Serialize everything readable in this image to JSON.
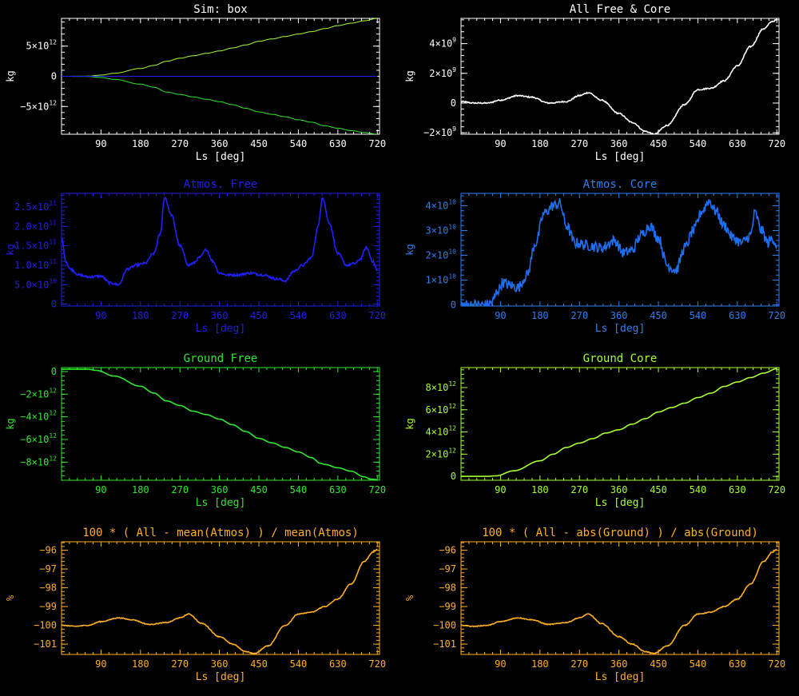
{
  "chart_data": [
    {
      "type": "line",
      "title": "Sim: box",
      "xlabel": "Ls [deg]",
      "ylabel": "kg",
      "color": "#ffffff",
      "xlim": [
        0,
        725
      ],
      "ylim": [
        -9600000000000.0,
        9600000000000.0
      ],
      "xticks": [
        90,
        180,
        270,
        360,
        450,
        540,
        630,
        720
      ],
      "yticks": [
        {
          "v": 5000000000000.0,
          "m": "5×10",
          "e": "12"
        },
        {
          "v": 0,
          "m": "0",
          "e": ""
        },
        {
          "v": -5000000000000.0,
          "m": "−5×10",
          "e": "12"
        }
      ],
      "series": [
        {
          "color": "#a6ff2e",
          "noise": 0,
          "x": [
            0,
            60,
            90,
            120,
            180,
            210,
            240,
            270,
            300,
            330,
            360,
            390,
            420,
            450,
            480,
            510,
            540,
            570,
            600,
            630,
            660,
            690,
            720
          ],
          "y": [
            0,
            20000000000.0,
            200000000000.0,
            500000000000.0,
            1300000000000.0,
            1800000000000.0,
            2500000000000.0,
            3000000000000.0,
            3400000000000.0,
            3800000000000.0,
            4200000000000.0,
            4700000000000.0,
            5200000000000.0,
            5800000000000.0,
            6200000000000.0,
            6600000000000.0,
            7000000000000.0,
            7400000000000.0,
            7900000000000.0,
            8400000000000.0,
            8800000000000.0,
            9200000000000.0,
            9600000000000.0
          ]
        },
        {
          "color": "#2ee82e",
          "noise": 0,
          "x": [
            0,
            60,
            90,
            120,
            180,
            210,
            240,
            270,
            300,
            330,
            360,
            390,
            420,
            450,
            480,
            510,
            540,
            570,
            600,
            630,
            660,
            690,
            720
          ],
          "y": [
            0,
            -20000000000.0,
            -200000000000.0,
            -500000000000.0,
            -1300000000000.0,
            -1800000000000.0,
            -2600000000000.0,
            -3000000000000.0,
            -3400000000000.0,
            -3800000000000.0,
            -4200000000000.0,
            -4700000000000.0,
            -5300000000000.0,
            -5900000000000.0,
            -6300000000000.0,
            -6700000000000.0,
            -7200000000000.0,
            -7600000000000.0,
            -8200000000000.0,
            -8600000000000.0,
            -9000000000000.0,
            -9300000000000.0,
            -9600000000000.0
          ]
        },
        {
          "color": "#2020ff",
          "noise": 0,
          "x": [
            0,
            720
          ],
          "y": [
            0,
            0
          ]
        }
      ]
    },
    {
      "type": "line",
      "title": "All Free & Core",
      "xlabel": "Ls [deg]",
      "ylabel": "kg",
      "color": "#ffffff",
      "xlim": [
        0,
        725
      ],
      "ylim": [
        -2100000000.0,
        5700000000.0
      ],
      "xticks": [
        90,
        180,
        270,
        360,
        450,
        540,
        630,
        720
      ],
      "yticks": [
        {
          "v": 4000000000.0,
          "m": "4×10",
          "e": "9"
        },
        {
          "v": 2000000000.0,
          "m": "2×10",
          "e": "9"
        },
        {
          "v": 0,
          "m": "0",
          "e": ""
        },
        {
          "v": -2000000000.0,
          "m": "−2×10",
          "e": "9"
        }
      ],
      "series": [
        {
          "color": "#ffffff",
          "noise": 40000000.0,
          "x": [
            0,
            30,
            60,
            90,
            130,
            160,
            200,
            240,
            270,
            290,
            320,
            360,
            390,
            420,
            440,
            470,
            510,
            540,
            570,
            600,
            630,
            660,
            690,
            710,
            720
          ],
          "y": [
            100000000.0,
            0.0,
            0.0,
            200000000.0,
            500000000.0,
            400000000.0,
            0.0,
            100000000.0,
            500000000.0,
            700000000.0,
            200000000.0,
            -700000000.0,
            -1300000000.0,
            -1900000000.0,
            -2100000000.0,
            -1500000000.0,
            -100000000.0,
            900000000.0,
            1000000000.0,
            1500000000.0,
            2500000000.0,
            3800000000.0,
            5000000000.0,
            5500000000.0,
            5600000000.0
          ]
        }
      ]
    },
    {
      "type": "line",
      "title": "Atmos. Free",
      "xlabel": "Ls [deg]",
      "ylabel": "kg",
      "color": "#2020e6",
      "xlim": [
        0,
        725
      ],
      "ylim": [
        -5000000000.0,
        285000000000.0
      ],
      "xticks": [
        90,
        180,
        270,
        360,
        450,
        540,
        630,
        720
      ],
      "yticks": [
        {
          "v": 250000000000.0,
          "m": "2.5×10",
          "e": "11"
        },
        {
          "v": 200000000000.0,
          "m": "2.0×10",
          "e": "11"
        },
        {
          "v": 150000000000.0,
          "m": "1.5×10",
          "e": "11"
        },
        {
          "v": 100000000000.0,
          "m": "1.0×10",
          "e": "11"
        },
        {
          "v": 50000000000.0,
          "m": "5.0×10",
          "e": "10"
        },
        {
          "v": 0,
          "m": "0",
          "e": ""
        }
      ],
      "series": [
        {
          "color": "#2020ff",
          "noise": 3000000000.0,
          "x": [
            0,
            10,
            20,
            40,
            60,
            90,
            110,
            130,
            150,
            170,
            190,
            210,
            225,
            235,
            250,
            270,
            290,
            300,
            315,
            330,
            345,
            360,
            380,
            400,
            430,
            460,
            490,
            510,
            530,
            550,
            570,
            585,
            595,
            610,
            630,
            650,
            670,
            680,
            695,
            710,
            720
          ],
          "y": [
            170000000000.0,
            110000000000.0,
            90000000000.0,
            75000000000.0,
            70000000000.0,
            72000000000.0,
            55000000000.0,
            50000000000.0,
            90000000000.0,
            100000000000.0,
            105000000000.0,
            130000000000.0,
            180000000000.0,
            275000000000.0,
            230000000000.0,
            150000000000.0,
            100000000000.0,
            105000000000.0,
            120000000000.0,
            140000000000.0,
            110000000000.0,
            80000000000.0,
            75000000000.0,
            75000000000.0,
            80000000000.0,
            75000000000.0,
            65000000000.0,
            60000000000.0,
            85000000000.0,
            100000000000.0,
            120000000000.0,
            200000000000.0,
            275000000000.0,
            210000000000.0,
            130000000000.0,
            100000000000.0,
            105000000000.0,
            115000000000.0,
            145000000000.0,
            110000000000.0,
            85000000000.0
          ]
        }
      ]
    },
    {
      "type": "line",
      "title": "Atmos. Core",
      "xlabel": "Ls [deg]",
      "ylabel": "kg",
      "color": "#2e7ff0",
      "xlim": [
        0,
        725
      ],
      "ylim": [
        -500000000.0,
        45000000000.0
      ],
      "xticks": [
        90,
        180,
        270,
        360,
        450,
        540,
        630,
        720
      ],
      "yticks": [
        {
          "v": 40000000000.0,
          "m": "4×10",
          "e": "10"
        },
        {
          "v": 30000000000.0,
          "m": "3×10",
          "e": "10"
        },
        {
          "v": 20000000000.0,
          "m": "2×10",
          "e": "10"
        },
        {
          "v": 10000000000.0,
          "m": "1×10",
          "e": "10"
        },
        {
          "v": 0,
          "m": "0",
          "e": ""
        }
      ],
      "series": [
        {
          "color": "#1e6ef0",
          "noise": 2200000000.0,
          "x": [
            0,
            60,
            70,
            85,
            95,
            110,
            130,
            150,
            170,
            190,
            210,
            225,
            240,
            260,
            290,
            320,
            350,
            370,
            390,
            410,
            430,
            450,
            470,
            490,
            510,
            530,
            550,
            565,
            580,
            600,
            620,
            640,
            660,
            670,
            685,
            700,
            710,
            720
          ],
          "y": [
            0,
            0,
            1000000000.0,
            6000000000.0,
            9000000000.0,
            8000000000.0,
            7000000000.0,
            12000000000.0,
            25000000000.0,
            37000000000.0,
            40000000000.0,
            41000000000.0,
            32000000000.0,
            25000000000.0,
            24000000000.0,
            23000000000.0,
            26000000000.0,
            21000000000.0,
            22000000000.0,
            28000000000.0,
            32000000000.0,
            27000000000.0,
            16000000000.0,
            14000000000.0,
            23000000000.0,
            30000000000.0,
            38000000000.0,
            42000000000.0,
            38000000000.0,
            32000000000.0,
            27000000000.0,
            25000000000.0,
            28000000000.0,
            37000000000.0,
            30000000000.0,
            25000000000.0,
            27000000000.0,
            24000000000.0
          ]
        }
      ]
    },
    {
      "type": "line",
      "title": "Ground Free",
      "xlabel": "Ls [deg]",
      "ylabel": "kg",
      "color": "#2ee82e",
      "xlim": [
        0,
        725
      ],
      "ylim": [
        -9600000000000.0,
        350000000000.0
      ],
      "xticks": [
        90,
        180,
        270,
        360,
        450,
        540,
        630,
        720
      ],
      "yticks": [
        {
          "v": 0,
          "m": "0",
          "e": ""
        },
        {
          "v": -2000000000000.0,
          "m": "−2×10",
          "e": "12"
        },
        {
          "v": -4000000000000.0,
          "m": "−4×10",
          "e": "12"
        },
        {
          "v": -6000000000000.0,
          "m": "−6×10",
          "e": "12"
        },
        {
          "v": -8000000000000.0,
          "m": "−8×10",
          "e": "12"
        }
      ],
      "series": [
        {
          "color": "#2ee82e",
          "noise": 0,
          "x": [
            0,
            60,
            80,
            120,
            180,
            210,
            240,
            270,
            300,
            330,
            360,
            390,
            420,
            450,
            480,
            510,
            540,
            570,
            590,
            600,
            630,
            660,
            690,
            705,
            720
          ],
          "y": [
            200000000000.0,
            200000000000.0,
            100000000000.0,
            -400000000000.0,
            -1300000000000.0,
            -1900000000000.0,
            -2600000000000.0,
            -3000000000000.0,
            -3500000000000.0,
            -3800000000000.0,
            -4200000000000.0,
            -4700000000000.0,
            -5300000000000.0,
            -5900000000000.0,
            -6300000000000.0,
            -6700000000000.0,
            -7100000000000.0,
            -7600000000000.0,
            -8100000000000.0,
            -8200000000000.0,
            -8500000000000.0,
            -8800000000000.0,
            -9300000000000.0,
            -9500000000000.0,
            -9550000000000.0
          ]
        }
      ]
    },
    {
      "type": "line",
      "title": "Ground Core",
      "xlabel": "Ls [deg]",
      "ylabel": "kg",
      "color": "#a6ff2e",
      "xlim": [
        0,
        725
      ],
      "ylim": [
        -350000000000.0,
        9800000000000.0
      ],
      "xticks": [
        90,
        180,
        270,
        360,
        450,
        540,
        630,
        720
      ],
      "yticks": [
        {
          "v": 8000000000000.0,
          "m": "8×10",
          "e": "12"
        },
        {
          "v": 6000000000000.0,
          "m": "6×10",
          "e": "12"
        },
        {
          "v": 4000000000000.0,
          "m": "4×10",
          "e": "12"
        },
        {
          "v": 2000000000000.0,
          "m": "2×10",
          "e": "12"
        },
        {
          "v": 0,
          "m": "0",
          "e": ""
        }
      ],
      "series": [
        {
          "color": "#a6ff2e",
          "noise": 0,
          "x": [
            0,
            60,
            80,
            120,
            180,
            210,
            240,
            270,
            300,
            330,
            360,
            390,
            420,
            450,
            480,
            510,
            540,
            570,
            600,
            630,
            660,
            690,
            720
          ],
          "y": [
            0,
            0,
            50000000000.0,
            500000000000.0,
            1400000000000.0,
            2000000000000.0,
            2600000000000.0,
            3000000000000.0,
            3400000000000.0,
            3900000000000.0,
            4200000000000.0,
            4700000000000.0,
            5200000000000.0,
            5800000000000.0,
            6200000000000.0,
            6600000000000.0,
            7100000000000.0,
            7500000000000.0,
            8100000000000.0,
            8500000000000.0,
            8900000000000.0,
            9300000000000.0,
            9700000000000.0
          ]
        }
      ]
    },
    {
      "type": "line",
      "title": "100 * ( All - mean(Atmos) ) / mean(Atmos)",
      "xlabel": "Ls [deg]",
      "ylabel": "%",
      "color": "#ffb020",
      "xlim": [
        0,
        725
      ],
      "ylim": [
        -101.55,
        -95.55
      ],
      "xticks": [
        90,
        180,
        270,
        360,
        450,
        540,
        630,
        720
      ],
      "yticks": [
        {
          "v": -96,
          "m": "−96",
          "e": ""
        },
        {
          "v": -97,
          "m": "−97",
          "e": ""
        },
        {
          "v": -98,
          "m": "−98",
          "e": ""
        },
        {
          "v": -99,
          "m": "−99",
          "e": ""
        },
        {
          "v": -100,
          "m": "−100",
          "e": ""
        },
        {
          "v": -101,
          "m": "−101",
          "e": ""
        }
      ],
      "series": [
        {
          "color": "#ffb020",
          "noise": 0.02,
          "x": [
            0,
            30,
            60,
            90,
            130,
            160,
            200,
            240,
            270,
            290,
            320,
            360,
            390,
            420,
            440,
            470,
            510,
            540,
            570,
            600,
            630,
            660,
            690,
            710,
            720
          ],
          "y": [
            -100.0,
            -100.05,
            -100.0,
            -99.8,
            -99.6,
            -99.7,
            -99.95,
            -99.85,
            -99.6,
            -99.4,
            -99.9,
            -100.6,
            -101.0,
            -101.4,
            -101.5,
            -101.1,
            -100.0,
            -99.4,
            -99.3,
            -99.0,
            -98.6,
            -97.8,
            -96.6,
            -96.1,
            -95.95
          ]
        }
      ]
    },
    {
      "type": "line",
      "title": "100 * ( All - abs(Ground) ) / abs(Ground)",
      "xlabel": "Ls [deg]",
      "ylabel": "%",
      "color": "#ffb020",
      "xlim": [
        0,
        725
      ],
      "ylim": [
        -101.55,
        -95.55
      ],
      "xticks": [
        90,
        180,
        270,
        360,
        450,
        540,
        630,
        720
      ],
      "yticks": [
        {
          "v": -96,
          "m": "−96",
          "e": ""
        },
        {
          "v": -97,
          "m": "−97",
          "e": ""
        },
        {
          "v": -98,
          "m": "−98",
          "e": ""
        },
        {
          "v": -99,
          "m": "−99",
          "e": ""
        },
        {
          "v": -100,
          "m": "−100",
          "e": ""
        },
        {
          "v": -101,
          "m": "−101",
          "e": ""
        }
      ],
      "series": [
        {
          "color": "#ffb020",
          "noise": 0.02,
          "x": [
            0,
            30,
            60,
            90,
            130,
            160,
            200,
            240,
            270,
            290,
            320,
            360,
            390,
            420,
            440,
            470,
            510,
            540,
            570,
            600,
            630,
            660,
            690,
            710,
            720
          ],
          "y": [
            -100.0,
            -100.05,
            -100.0,
            -99.8,
            -99.6,
            -99.7,
            -99.95,
            -99.85,
            -99.6,
            -99.4,
            -99.9,
            -100.6,
            -101.0,
            -101.4,
            -101.5,
            -101.1,
            -100.0,
            -99.4,
            -99.3,
            -99.0,
            -98.6,
            -97.8,
            -96.6,
            -96.1,
            -95.95
          ]
        }
      ]
    }
  ]
}
